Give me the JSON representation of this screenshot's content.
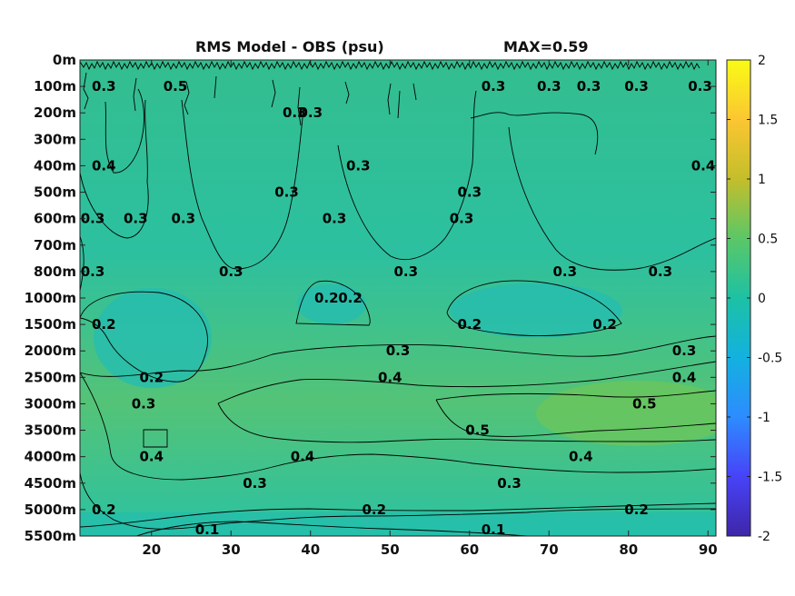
{
  "chart_data": {
    "type": "heatmap",
    "title": "RMS Model - OBS (psu)",
    "max_label": "MAX=0.59",
    "xlabel": "",
    "ylabel": "",
    "x_ticks": [
      "20",
      "30",
      "40",
      "50",
      "60",
      "70",
      "80",
      "90"
    ],
    "x_range": [
      11,
      91
    ],
    "y_ticks": [
      "0m",
      "100m",
      "200m",
      "300m",
      "400m",
      "500m",
      "600m",
      "700m",
      "800m",
      "1000m",
      "1500m",
      "2000m",
      "2500m",
      "3000m",
      "3500m",
      "4000m",
      "4500m",
      "5000m",
      "5500m"
    ],
    "colorbar": {
      "range": [
        -2,
        2
      ],
      "ticks": [
        "2",
        "1.5",
        "1",
        "0.5",
        "0",
        "-0.5",
        "-1",
        "-1.5",
        "-2"
      ],
      "colormap": [
        "#3e26a8",
        "#4743f8",
        "#2d8cff",
        "#13b1df",
        "#1dc1a4",
        "#5bc767",
        "#c4be2b",
        "#fbc632",
        "#f9fb15"
      ]
    },
    "contour_levels": [
      0.1,
      0.2,
      0.3,
      0.4,
      0.5
    ],
    "contour_labels": [
      {
        "text": "0.5",
        "x": 23,
        "depth": "100m"
      },
      {
        "text": "0.3",
        "x": 14,
        "depth": "100m"
      },
      {
        "text": "0.3",
        "x": 38,
        "depth": "200m"
      },
      {
        "text": "0.3",
        "x": 40,
        "depth": "200m"
      },
      {
        "text": "0.3",
        "x": 63,
        "depth": "100m"
      },
      {
        "text": "0.3",
        "x": 70,
        "depth": "100m"
      },
      {
        "text": "0.3",
        "x": 75,
        "depth": "100m"
      },
      {
        "text": "0.3",
        "x": 81,
        "depth": "100m"
      },
      {
        "text": "0.3",
        "x": 89,
        "depth": "100m"
      },
      {
        "text": "0.4",
        "x": 14,
        "depth": "400m"
      },
      {
        "text": "0.4",
        "x": 90,
        "depth": "400m"
      },
      {
        "text": "0.3",
        "x": 46,
        "depth": "400m"
      },
      {
        "text": "0.3",
        "x": 12,
        "depth": "600m"
      },
      {
        "text": "0.3",
        "x": 18,
        "depth": "600m"
      },
      {
        "text": "0.3",
        "x": 24,
        "depth": "600m"
      },
      {
        "text": "0.3",
        "x": 37,
        "depth": "500m"
      },
      {
        "text": "0.3",
        "x": 43,
        "depth": "600m"
      },
      {
        "text": "0.3",
        "x": 60,
        "depth": "500m"
      },
      {
        "text": "0.3",
        "x": 59,
        "depth": "600m"
      },
      {
        "text": "0.3",
        "x": 30,
        "depth": "800m"
      },
      {
        "text": "0.3",
        "x": 52,
        "depth": "800m"
      },
      {
        "text": "0.3",
        "x": 72,
        "depth": "800m"
      },
      {
        "text": "0.3",
        "x": 84,
        "depth": "800m"
      },
      {
        "text": "0.3",
        "x": 12,
        "depth": "800m"
      },
      {
        "text": "0.2",
        "x": 14,
        "depth": "1500m"
      },
      {
        "text": "0.2",
        "x": 42,
        "depth": "1000m"
      },
      {
        "text": "0.2",
        "x": 45,
        "depth": "1000m"
      },
      {
        "text": "0.2",
        "x": 60,
        "depth": "1500m"
      },
      {
        "text": "0.2",
        "x": 77,
        "depth": "1500m"
      },
      {
        "text": "0.2",
        "x": 20,
        "depth": "2500m"
      },
      {
        "text": "0.3",
        "x": 51,
        "depth": "2000m"
      },
      {
        "text": "0.3",
        "x": 87,
        "depth": "2000m"
      },
      {
        "text": "0.4",
        "x": 50,
        "depth": "2500m"
      },
      {
        "text": "0.4",
        "x": 87,
        "depth": "2500m"
      },
      {
        "text": "0.3",
        "x": 19,
        "depth": "3000m"
      },
      {
        "text": "0.5",
        "x": 82,
        "depth": "3000m"
      },
      {
        "text": "0.5",
        "x": 61,
        "depth": "3500m"
      },
      {
        "text": "0.4",
        "x": 20,
        "depth": "4000m"
      },
      {
        "text": "0.4",
        "x": 39,
        "depth": "4000m"
      },
      {
        "text": "0.4",
        "x": 74,
        "depth": "4000m"
      },
      {
        "text": "0.3",
        "x": 33,
        "depth": "4500m"
      },
      {
        "text": "0.3",
        "x": 65,
        "depth": "4500m"
      },
      {
        "text": "0.2",
        "x": 14,
        "depth": "5000m"
      },
      {
        "text": "0.2",
        "x": 48,
        "depth": "5000m"
      },
      {
        "text": "0.2",
        "x": 81,
        "depth": "5000m"
      },
      {
        "text": "0.1",
        "x": 27,
        "depth": "5500m"
      },
      {
        "text": "0.1",
        "x": 63,
        "depth": "5500m"
      }
    ]
  }
}
